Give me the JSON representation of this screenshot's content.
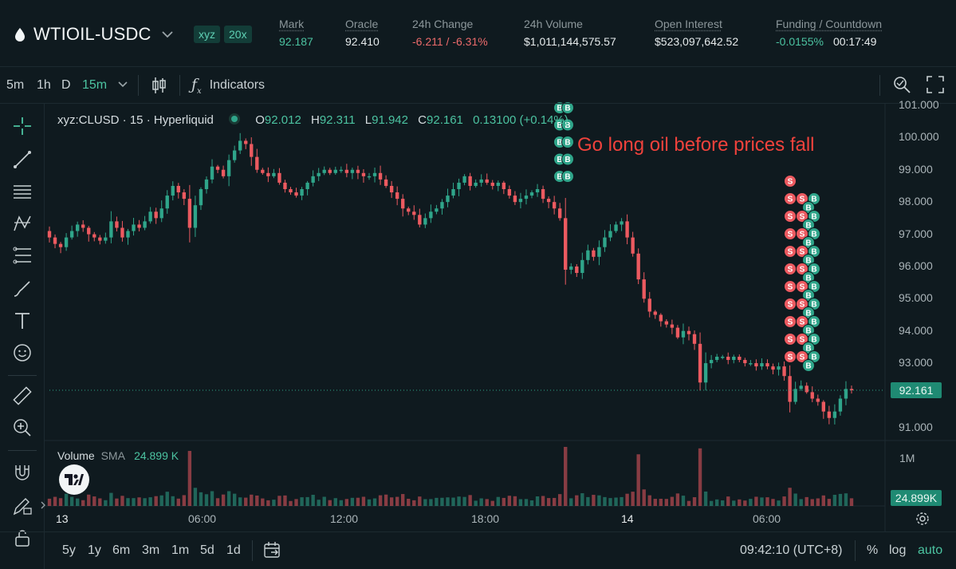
{
  "header": {
    "symbol": "WTIOIL-USDC",
    "dex_badge": "xyz",
    "leverage_badge": "20x",
    "stats": [
      {
        "label": "Mark",
        "value": "92.187",
        "tone": "green"
      },
      {
        "label": "Oracle",
        "value": "92.410",
        "tone": "neutral"
      },
      {
        "label": "24h Change",
        "value": "-6.211 / -6.31%",
        "tone": "red"
      },
      {
        "label": "24h Volume",
        "value": "$1,011,144,575.57",
        "tone": "neutral"
      },
      {
        "label": "Open Interest",
        "value": "$523,097,642.52",
        "tone": "neutral"
      },
      {
        "label": "Funding / Countdown",
        "value": "-0.0155%",
        "value2": "00:17:49",
        "tone": "green"
      }
    ]
  },
  "toolbar": {
    "timeframes": [
      "5m",
      "1h",
      "D",
      "15m"
    ],
    "active_timeframe": "15m",
    "indicators_label": "Indicators"
  },
  "legend": {
    "title": "xyz:CLUSD · 15 · Hyperliquid",
    "o_label": "O",
    "o": "92.012",
    "h_label": "H",
    "h": "92.311",
    "l_label": "L",
    "l": "91.942",
    "c_label": "C",
    "c": "92.161",
    "change": "0.13100 (+0.14%)"
  },
  "volume_legend": {
    "label": "Volume",
    "sma_label": "SMA",
    "value": "24.899 K"
  },
  "annotation": "Go long oil before prices fall",
  "price_axis": {
    "ticks": [
      "101.000",
      "100.000",
      "99.000",
      "98.000",
      "97.000",
      "96.000",
      "95.000",
      "94.000",
      "93.000",
      "91.000"
    ],
    "last_price": "92.161"
  },
  "volume_axis": {
    "tick": "1M",
    "last_value": "24.899K"
  },
  "time_axis": {
    "ticks": [
      "13",
      "06:00",
      "12:00",
      "18:00",
      "14",
      "06:00"
    ]
  },
  "bottom": {
    "ranges": [
      "5y",
      "1y",
      "6m",
      "3m",
      "1m",
      "5d",
      "1d"
    ],
    "clock": "09:42:10 (UTC+8)",
    "percent_label": "%",
    "log_label": "log",
    "auto_label": "auto"
  },
  "trade_markers": {
    "buy": "B",
    "sell": "S"
  },
  "colors": {
    "up": "#2fa58a",
    "down": "#ec5a60",
    "background": "#0f1a1f",
    "annotation": "#f0423c"
  },
  "chart_data": {
    "type": "candlestick",
    "interval": "15m",
    "ylim": [
      90.6,
      101.0
    ],
    "closes": [
      96.9,
      96.7,
      96.6,
      96.9,
      97.1,
      97.3,
      97.2,
      97.0,
      96.9,
      96.8,
      96.9,
      97.4,
      97.2,
      96.9,
      97.1,
      97.3,
      97.2,
      97.4,
      97.7,
      97.5,
      97.8,
      98.2,
      98.5,
      98.3,
      98.1,
      97.2,
      97.9,
      98.4,
      98.7,
      99.1,
      99.0,
      98.8,
      99.3,
      99.6,
      99.9,
      99.8,
      99.4,
      99.0,
      98.9,
      98.8,
      98.9,
      98.6,
      98.4,
      98.3,
      98.2,
      98.4,
      98.6,
      98.8,
      98.9,
      99.0,
      98.9,
      99.0,
      99.0,
      98.9,
      99.0,
      98.9,
      98.8,
      98.8,
      98.9,
      98.7,
      98.5,
      98.3,
      98.1,
      97.8,
      97.7,
      97.6,
      97.3,
      97.5,
      97.7,
      97.8,
      98.0,
      98.2,
      98.4,
      98.6,
      98.8,
      98.5,
      98.6,
      98.7,
      98.6,
      98.5,
      98.6,
      98.4,
      98.2,
      98.0,
      98.1,
      98.2,
      98.3,
      98.4,
      98.1,
      98.0,
      97.8,
      97.5,
      95.9,
      96.0,
      95.8,
      96.2,
      96.5,
      96.3,
      96.6,
      96.9,
      97.1,
      97.3,
      97.4,
      96.9,
      96.4,
      95.6,
      95.0,
      94.6,
      94.5,
      94.3,
      94.2,
      94.1,
      93.8,
      94.0,
      93.9,
      93.6,
      92.4,
      93.0,
      93.1,
      93.2,
      93.2,
      93.1,
      93.2,
      93.1,
      93.0,
      93.0,
      92.9,
      93.0,
      92.9,
      92.8,
      92.9,
      92.6,
      91.8,
      92.2,
      92.3,
      92.1,
      91.9,
      91.8,
      91.5,
      91.3,
      91.5,
      91.9,
      92.2,
      92.16
    ]
  }
}
